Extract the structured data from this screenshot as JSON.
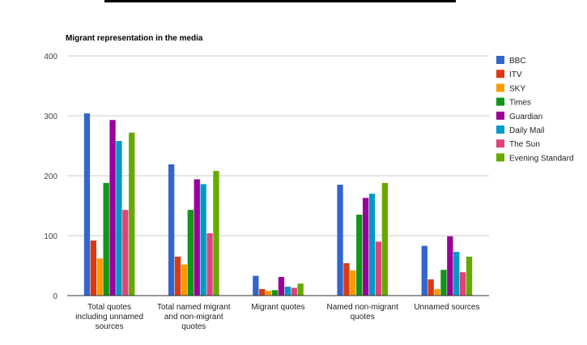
{
  "chart_data": {
    "type": "bar",
    "title": "Migrant representation in the media",
    "xlabel": "",
    "ylabel": "",
    "ylim": [
      0,
      400
    ],
    "yticks": [
      0,
      100,
      200,
      300,
      400
    ],
    "grid": true,
    "legend_position": "right",
    "categories": [
      [
        "Total quotes",
        "including unnamed",
        "sources"
      ],
      [
        "Total named migrant",
        "and non-migrant",
        "quotes"
      ],
      [
        "Migrant quotes"
      ],
      [
        "Named non-migrant",
        "quotes"
      ],
      [
        "Unnamed sources"
      ]
    ],
    "series": [
      {
        "name": "BBC",
        "color": "#3366cc",
        "values": [
          304,
          219,
          33,
          185,
          83
        ]
      },
      {
        "name": "ITV",
        "color": "#dc3912",
        "values": [
          92,
          65,
          11,
          54,
          27
        ]
      },
      {
        "name": "SKY",
        "color": "#ff9900",
        "values": [
          62,
          52,
          8,
          42,
          11
        ]
      },
      {
        "name": "Times",
        "color": "#109618",
        "values": [
          188,
          143,
          9,
          135,
          43
        ]
      },
      {
        "name": "Guardian",
        "color": "#990099",
        "values": [
          293,
          194,
          31,
          163,
          99
        ]
      },
      {
        "name": "Daily Mail",
        "color": "#0099c6",
        "values": [
          258,
          186,
          15,
          170,
          73
        ]
      },
      {
        "name": "The Sun",
        "color": "#dd4477",
        "values": [
          143,
          104,
          13,
          90,
          39
        ]
      },
      {
        "name": "Evening Standard",
        "color": "#66aa00",
        "values": [
          272,
          208,
          20,
          188,
          65
        ]
      }
    ]
  }
}
